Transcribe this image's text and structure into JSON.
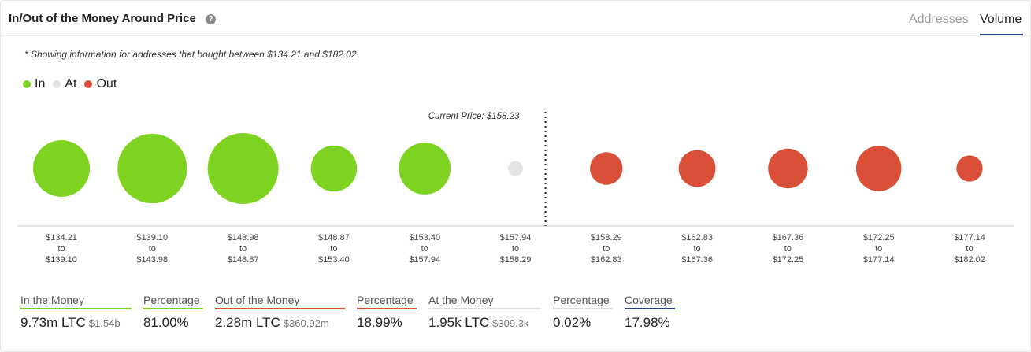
{
  "header": {
    "title": "In/Out of the Money Around Price",
    "help_icon": "question-circle-icon",
    "tabs": [
      {
        "label": "Addresses",
        "active": false
      },
      {
        "label": "Volume",
        "active": true
      }
    ]
  },
  "note": "* Showing information for addresses that bought between $134.21 and $182.02",
  "legend": [
    {
      "label": "In",
      "color": "#7ed321"
    },
    {
      "label": "At",
      "color": "#e3e3e3"
    },
    {
      "label": "Out",
      "color": "#d94f38"
    }
  ],
  "chart_data": {
    "type": "scatter",
    "current_price_label": "Current Price: $158.23",
    "current_price": 158.23,
    "buckets": [
      {
        "from": "$134.21",
        "to_word": "to",
        "to": "$139.10",
        "status": "in",
        "relative_size": 0.8
      },
      {
        "from": "$139.10",
        "to_word": "to",
        "to": "$143.98",
        "status": "in",
        "relative_size": 0.98
      },
      {
        "from": "$143.98",
        "to_word": "to",
        "to": "$148.87",
        "status": "in",
        "relative_size": 1.0
      },
      {
        "from": "$148.87",
        "to_word": "to",
        "to": "$153.40",
        "status": "in",
        "relative_size": 0.65
      },
      {
        "from": "$153.40",
        "to_word": "to",
        "to": "$157.94",
        "status": "in",
        "relative_size": 0.73
      },
      {
        "from": "$157.94",
        "to_word": "to",
        "to": "$158.29",
        "status": "at",
        "relative_size": 0.21
      },
      {
        "from": "$158.29",
        "to_word": "to",
        "to": "$162.83",
        "status": "out",
        "relative_size": 0.46
      },
      {
        "from": "$162.83",
        "to_word": "to",
        "to": "$167.36",
        "status": "out",
        "relative_size": 0.52
      },
      {
        "from": "$167.36",
        "to_word": "to",
        "to": "$172.25",
        "status": "out",
        "relative_size": 0.56
      },
      {
        "from": "$172.25",
        "to_word": "to",
        "to": "$177.14",
        "status": "out",
        "relative_size": 0.64
      },
      {
        "from": "$177.14",
        "to_word": "to",
        "to": "$182.02",
        "status": "out",
        "relative_size": 0.37
      }
    ],
    "colors": {
      "in": "#7ed321",
      "at": "#e3e3e3",
      "out": "#d94f38"
    }
  },
  "stats": {
    "in_money": {
      "label": "In the Money",
      "value": "9.73m LTC",
      "sub": "$1.54b",
      "color": "#7ed321"
    },
    "in_pct": {
      "label": "Percentage",
      "value": "81.00%",
      "color": "#7ed321"
    },
    "out_money": {
      "label": "Out of the Money",
      "value": "2.28m LTC",
      "sub": "$360.92m",
      "color": "#d94f38"
    },
    "out_pct": {
      "label": "Percentage",
      "value": "18.99%",
      "color": "#d94f38"
    },
    "at_money": {
      "label": "At the Money",
      "value": "1.95k LTC",
      "sub": "$309.3k",
      "color": "#dddddd"
    },
    "at_pct": {
      "label": "Percentage",
      "value": "0.02%",
      "color": "#dddddd"
    },
    "coverage": {
      "label": "Coverage",
      "value": "17.98%",
      "color": "#2c3e8f"
    }
  }
}
